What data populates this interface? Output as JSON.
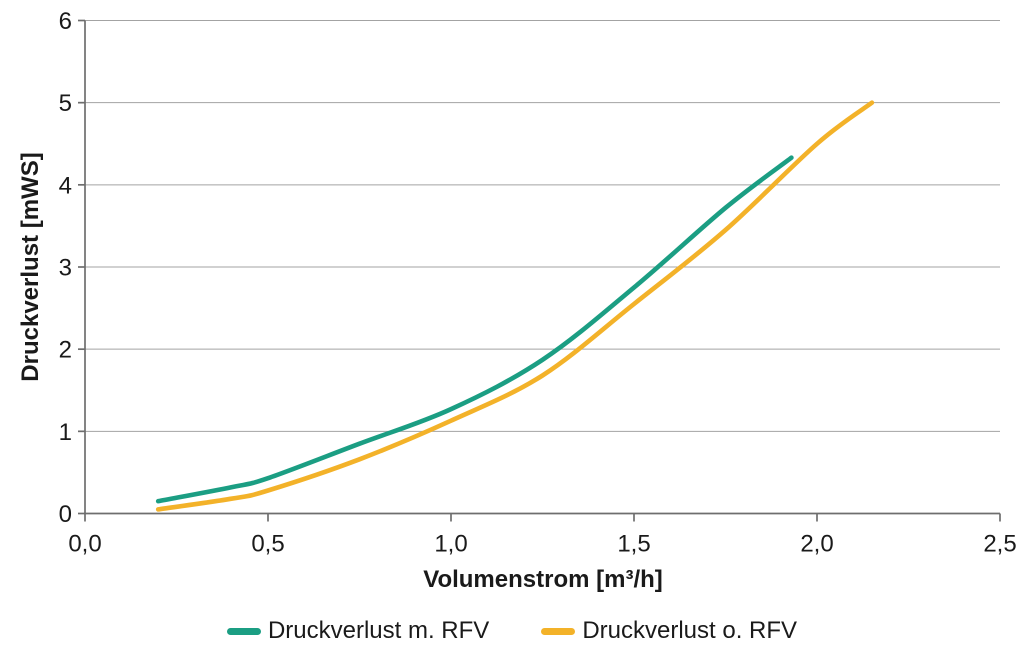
{
  "chart_data": {
    "type": "line",
    "xlabel": "Volumenstrom [m³/h]",
    "ylabel": "Druckverlust [mWS]",
    "xlim": [
      0,
      2.5
    ],
    "ylim": [
      0,
      6
    ],
    "x_ticks": {
      "values": [
        0,
        0.5,
        1.0,
        1.5,
        2.0,
        2.5
      ],
      "labels": [
        "0,0",
        "0,5",
        "1,0",
        "1,5",
        "2,0",
        "2,5"
      ]
    },
    "y_ticks": {
      "values": [
        0,
        1,
        2,
        3,
        4,
        5,
        6
      ],
      "labels": [
        "0",
        "1",
        "2",
        "3",
        "4",
        "5",
        "6"
      ]
    },
    "grid": "horizontal-only",
    "legend_position": "bottom-center",
    "series": [
      {
        "name": "Druckverlust m. RFV",
        "color": "#1b9e83",
        "x": [
          0.2,
          0.4,
          0.5,
          0.75,
          1.0,
          1.25,
          1.5,
          1.75,
          1.93
        ],
        "y": [
          0.15,
          0.32,
          0.43,
          0.85,
          1.27,
          1.87,
          2.75,
          3.72,
          4.33
        ]
      },
      {
        "name": "Druckverlust o. RFV",
        "color": "#f3b229",
        "x": [
          0.2,
          0.4,
          0.5,
          0.75,
          1.0,
          1.25,
          1.5,
          1.75,
          2.0,
          2.15
        ],
        "y": [
          0.05,
          0.18,
          0.28,
          0.66,
          1.13,
          1.68,
          2.55,
          3.45,
          4.5,
          5.0
        ]
      }
    ]
  },
  "style_colors": {
    "gridline": "#a3a3a3",
    "axis": "#6e6e6e",
    "text": "#1a1a1a",
    "background": "#ffffff"
  }
}
